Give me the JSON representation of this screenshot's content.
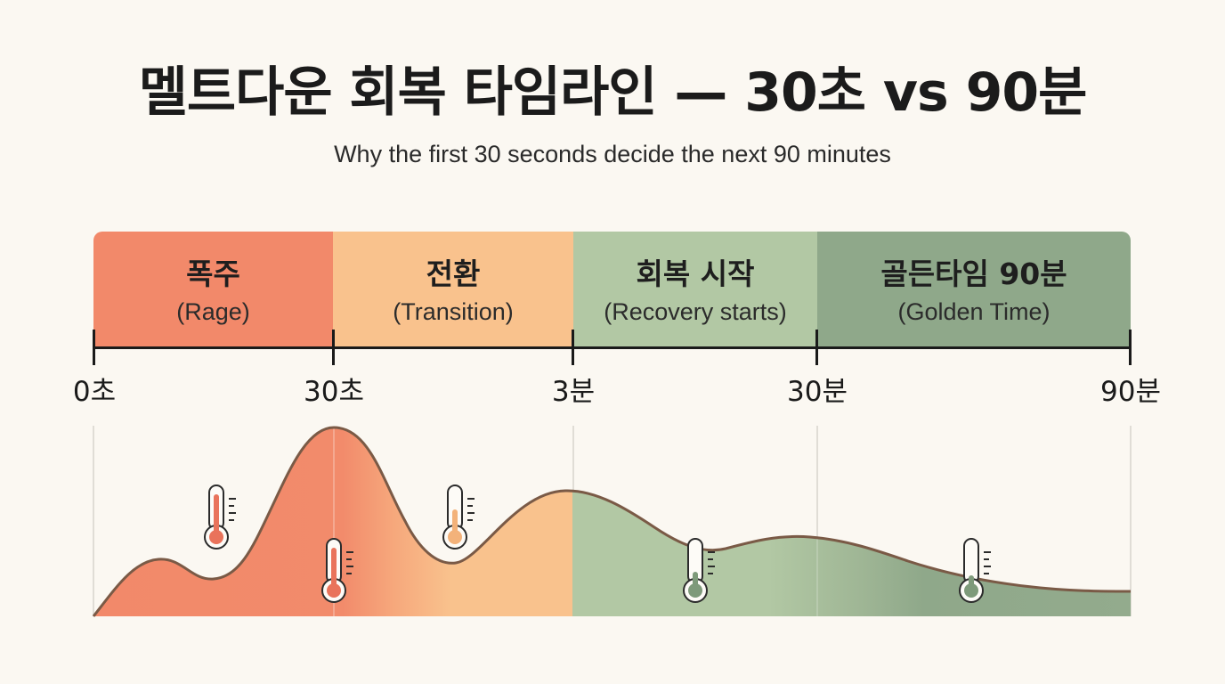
{
  "header": {
    "title": "멜트다운 회복 타임라인 — 30초 vs 90분",
    "subtitle": "Why the first 30 seconds decide the next 90 minutes"
  },
  "phases": [
    {
      "ko": "폭주",
      "en": "(Rage)",
      "color": "#f2896a"
    },
    {
      "ko": "전환",
      "en": "(Transition)",
      "color": "#f9c28d"
    },
    {
      "ko": "회복 시작",
      "en": "(Recovery starts)",
      "color": "#b2c8a4"
    },
    {
      "ko": "골든타임 90분",
      "en": "(Golden Time)",
      "color": "#8fa88a"
    }
  ],
  "timeline": {
    "ticks": [
      "0초",
      "30초",
      "3분",
      "30분",
      "90분"
    ]
  },
  "icons": [
    "thermometer-icon"
  ]
}
